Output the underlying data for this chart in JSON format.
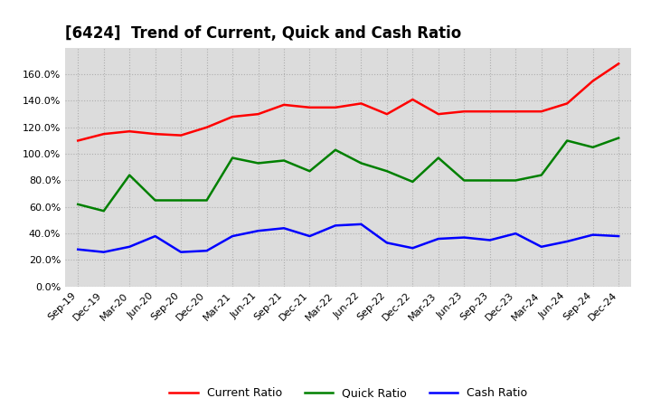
{
  "title": "[6424]  Trend of Current, Quick and Cash Ratio",
  "x_labels": [
    "Sep-19",
    "Dec-19",
    "Mar-20",
    "Jun-20",
    "Sep-20",
    "Dec-20",
    "Mar-21",
    "Jun-21",
    "Sep-21",
    "Dec-21",
    "Mar-22",
    "Jun-22",
    "Sep-22",
    "Dec-22",
    "Mar-23",
    "Jun-23",
    "Sep-23",
    "Dec-23",
    "Mar-24",
    "Jun-24",
    "Sep-24",
    "Dec-24"
  ],
  "current_ratio": [
    1.1,
    1.15,
    1.17,
    1.15,
    1.14,
    1.2,
    1.28,
    1.3,
    1.37,
    1.35,
    1.35,
    1.38,
    1.3,
    1.41,
    1.3,
    1.32,
    1.32,
    1.32,
    1.32,
    1.38,
    1.55,
    1.68
  ],
  "quick_ratio": [
    0.62,
    0.57,
    0.84,
    0.65,
    0.65,
    0.65,
    0.97,
    0.93,
    0.95,
    0.87,
    1.03,
    0.93,
    0.87,
    0.79,
    0.97,
    0.8,
    0.8,
    0.8,
    0.84,
    1.1,
    1.05,
    1.12
  ],
  "cash_ratio": [
    0.28,
    0.26,
    0.3,
    0.38,
    0.26,
    0.27,
    0.38,
    0.42,
    0.44,
    0.38,
    0.46,
    0.47,
    0.33,
    0.29,
    0.36,
    0.37,
    0.35,
    0.4,
    0.3,
    0.34,
    0.39,
    0.38
  ],
  "current_color": "#FF0000",
  "quick_color": "#008000",
  "cash_color": "#0000FF",
  "bg_color": "#FFFFFF",
  "plot_bg_color": "#DCDCDC",
  "grid_color": "#AAAAAA",
  "ylim": [
    0.0,
    1.8
  ],
  "yticks": [
    0.0,
    0.2,
    0.4,
    0.6,
    0.8,
    1.0,
    1.2,
    1.4,
    1.6
  ],
  "legend_labels": [
    "Current Ratio",
    "Quick Ratio",
    "Cash Ratio"
  ],
  "title_fontsize": 12,
  "tick_fontsize": 8
}
